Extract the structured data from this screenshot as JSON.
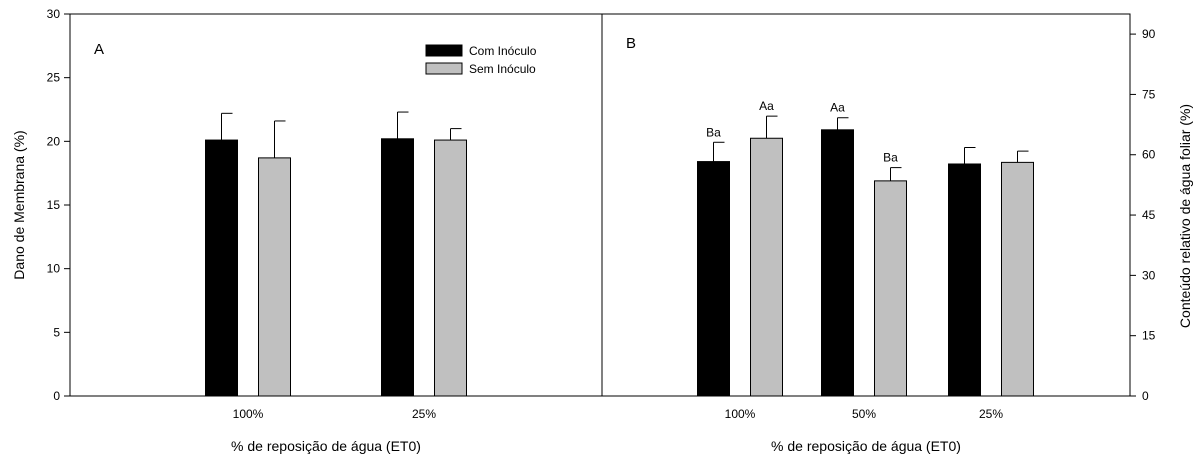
{
  "legend": [
    {
      "label": "Com Inóculo",
      "color": "#000000"
    },
    {
      "label": "Sem Inóculo",
      "color": "#c0c0c0"
    }
  ],
  "chart_data": [
    {
      "type": "bar",
      "panel_label": "A",
      "categories": [
        "100%",
        "25%"
      ],
      "series": [
        {
          "name": "Com Inóculo",
          "values": [
            20.1,
            20.2
          ],
          "errors": [
            2.1,
            2.1
          ]
        },
        {
          "name": "Sem Inóculo",
          "values": [
            18.7,
            20.1
          ],
          "errors": [
            2.9,
            0.9
          ]
        }
      ],
      "xlabel": "% de reposição de água (ET0)",
      "ylabel": "Dano de Membrana (%)",
      "ylim": [
        0,
        30
      ],
      "yticks": [
        0,
        5,
        10,
        15,
        20,
        25,
        30
      ],
      "y_axis_side": "left",
      "legend_position": "top-right",
      "grid": false
    },
    {
      "type": "bar",
      "panel_label": "B",
      "categories": [
        "100%",
        "50%",
        "25%"
      ],
      "series": [
        {
          "name": "Com Inóculo",
          "values": [
            58.3,
            66.2,
            57.7
          ],
          "errors": [
            4.8,
            3.0,
            4.1
          ],
          "labels": [
            "Ba",
            "Aa",
            ""
          ]
        },
        {
          "name": "Sem Inóculo",
          "values": [
            64.1,
            53.5,
            58.1
          ],
          "errors": [
            5.5,
            3.3,
            2.8
          ],
          "labels": [
            "Aa",
            "Ba",
            ""
          ]
        }
      ],
      "xlabel": "% de reposição de água (ET0)",
      "ylabel": "Conteúdo relativo de água foliar (%)",
      "ylim": [
        0,
        95
      ],
      "yticks": [
        0,
        15,
        30,
        45,
        60,
        75,
        90
      ],
      "y_axis_side": "right",
      "grid": false
    }
  ]
}
